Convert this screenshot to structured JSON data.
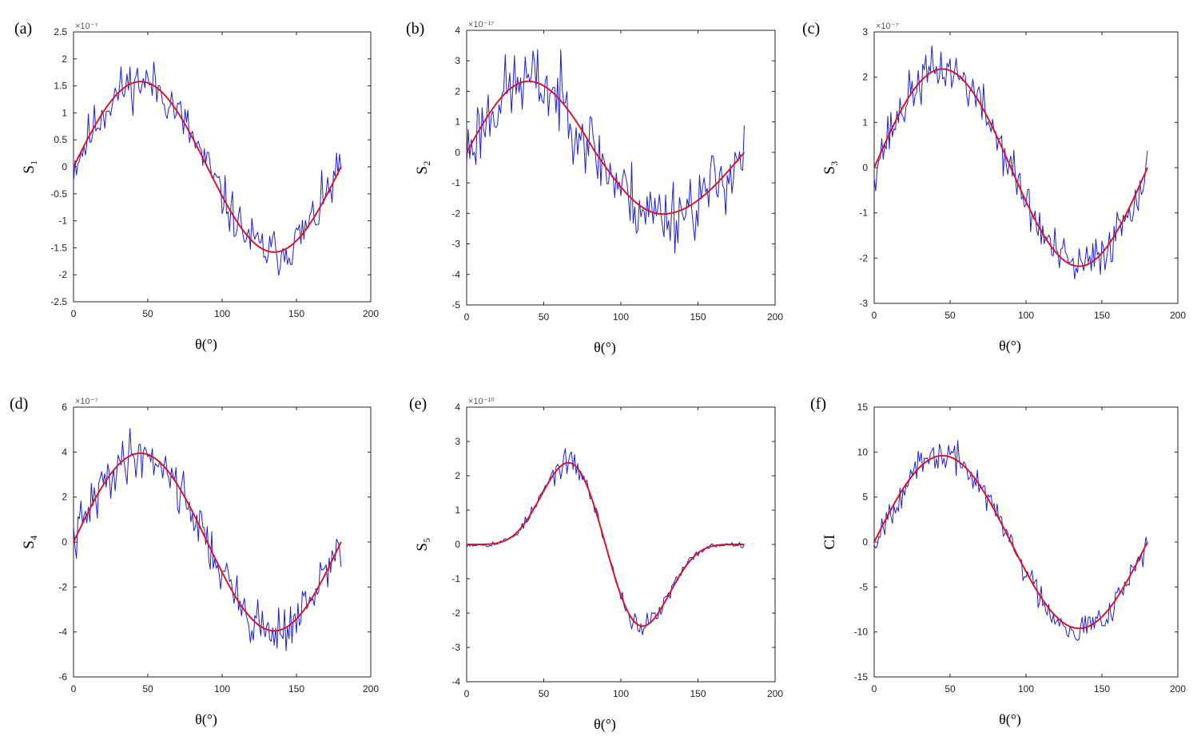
{
  "chart_data": [
    {
      "panel": "(a)",
      "type": "line",
      "xlabel": "θ(°)",
      "ylabel": "S₁",
      "exponent": "×10⁻⁷",
      "xlim": [
        0,
        200
      ],
      "ylim": [
        -2.5,
        2.5
      ],
      "xticks": [
        "0",
        "50",
        "100",
        "150",
        "200"
      ],
      "yticks": [
        "-2.5",
        "-2",
        "-1.5",
        "-1",
        "-0.5",
        "0",
        "0.5",
        "1",
        "1.5",
        "2",
        "2.5"
      ],
      "series": [
        {
          "name": "noisy",
          "color": "#1f1fc8",
          "model": "sin2",
          "amp": 1.58,
          "noise": 0.22,
          "seed": 11
        },
        {
          "name": "fit",
          "color": "#d4162f",
          "model": "sin2",
          "amp": 1.58
        }
      ]
    },
    {
      "panel": "(b)",
      "type": "line",
      "xlabel": "θ(°)",
      "ylabel": "S₂",
      "exponent": "×10⁻¹⁷",
      "xlim": [
        0,
        200
      ],
      "ylim": [
        -5,
        4
      ],
      "xticks": [
        "0",
        "50",
        "100",
        "150",
        "200"
      ],
      "yticks": [
        "-5",
        "-4",
        "-3",
        "-2",
        "-1",
        "0",
        "1",
        "2",
        "3",
        "4"
      ],
      "series": [
        {
          "name": "noisy",
          "color": "#1f1fc8",
          "model": "skew",
          "amp": 2.33,
          "amp2": 2.02,
          "peak": 40,
          "trough": 127,
          "noise": 0.6,
          "seed": 23
        },
        {
          "name": "fit",
          "color": "#d4162f",
          "model": "skew",
          "amp": 2.33,
          "amp2": 2.02,
          "peak": 40,
          "trough": 127
        }
      ]
    },
    {
      "panel": "(c)",
      "type": "line",
      "xlabel": "θ(°)",
      "ylabel": "S₃",
      "exponent": "×10⁻⁷",
      "xlim": [
        0,
        200
      ],
      "ylim": [
        -3,
        3
      ],
      "xticks": [
        "0",
        "50",
        "100",
        "150",
        "200"
      ],
      "yticks": [
        "-3",
        "-2",
        "-1",
        "0",
        "1",
        "2",
        "3"
      ],
      "series": [
        {
          "name": "noisy",
          "color": "#1f1fc8",
          "model": "sin2",
          "amp": 2.18,
          "noise": 0.26,
          "seed": 37
        },
        {
          "name": "fit",
          "color": "#d4162f",
          "model": "sin2",
          "amp": 2.18
        }
      ]
    },
    {
      "panel": "(d)",
      "type": "line",
      "xlabel": "θ(°)",
      "ylabel": "S₄",
      "exponent": "×10⁻⁷",
      "xlim": [
        0,
        200
      ],
      "ylim": [
        -6,
        6
      ],
      "xticks": [
        "0",
        "50",
        "100",
        "150",
        "200"
      ],
      "yticks": [
        "-6",
        "-4",
        "-2",
        "0",
        "2",
        "4",
        "6"
      ],
      "series": [
        {
          "name": "noisy",
          "color": "#1f1fc8",
          "model": "sin2",
          "amp": 3.95,
          "noise": 0.55,
          "seed": 41
        },
        {
          "name": "fit",
          "color": "#d4162f",
          "model": "sin2",
          "amp": 3.95
        }
      ]
    },
    {
      "panel": "(e)",
      "type": "line",
      "xlabel": "θ(°)",
      "ylabel": "S₅",
      "exponent": "×10⁻¹⁰",
      "xlim": [
        0,
        200
      ],
      "ylim": [
        -4,
        4
      ],
      "xticks": [
        "0",
        "50",
        "100",
        "150",
        "200"
      ],
      "yticks": [
        "-4",
        "-3",
        "-2",
        "-1",
        "0",
        "1",
        "2",
        "3",
        "4"
      ],
      "series": [
        {
          "name": "noisy",
          "color": "#1f1fc8",
          "model": "s5",
          "amp": 2.85,
          "noise": 0.16,
          "seed": 53
        },
        {
          "name": "fit",
          "color": "#d4162f",
          "model": "s5",
          "amp": 2.85
        }
      ]
    },
    {
      "panel": "(f)",
      "type": "line",
      "xlabel": "θ(°)",
      "ylabel": "CI",
      "exponent": "",
      "xlim": [
        0,
        200
      ],
      "ylim": [
        -15,
        15
      ],
      "xticks": [
        "0",
        "50",
        "100",
        "150",
        "200"
      ],
      "yticks": [
        "-15",
        "-10",
        "-5",
        "0",
        "5",
        "10",
        "15"
      ],
      "series": [
        {
          "name": "noisy",
          "color": "#1f1fc8",
          "model": "sin2",
          "amp": 9.6,
          "noise": 0.85,
          "seed": 67
        },
        {
          "name": "fit",
          "color": "#d4162f",
          "model": "sin2",
          "amp": 9.6
        }
      ]
    }
  ]
}
